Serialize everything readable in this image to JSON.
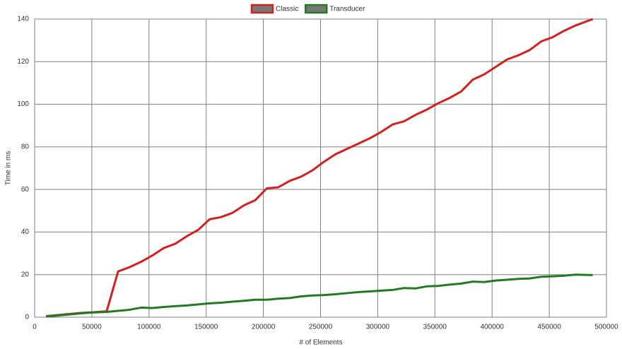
{
  "chart_data": {
    "type": "line",
    "x_label": "# of Elements",
    "y_label": "Time in ms",
    "x": [
      10000,
      20000,
      30000,
      40000,
      50000,
      63000,
      73000,
      83000,
      93000,
      103000,
      113000,
      123000,
      133000,
      143000,
      153000,
      163000,
      173000,
      183000,
      193000,
      203000,
      213000,
      223000,
      233000,
      243000,
      253000,
      263000,
      273000,
      283000,
      293000,
      303000,
      313000,
      323000,
      333000,
      343000,
      353000,
      363000,
      373000,
      383000,
      393000,
      403000,
      413000,
      423000,
      433000,
      443000,
      453000,
      463000,
      473000,
      488000
    ],
    "series": [
      {
        "name": "Classic",
        "color": "#d42020",
        "values": [
          0.5,
          1,
          1.5,
          2,
          2.3,
          2.8,
          21.5,
          23.5,
          26,
          29,
          32.5,
          34.5,
          38,
          41,
          46,
          47,
          49,
          52.5,
          55,
          60.5,
          61,
          64,
          66,
          69,
          73,
          76.5,
          79,
          81.5,
          84,
          87,
          90.5,
          92,
          95,
          97.5,
          100.5,
          103,
          106,
          111.5,
          114,
          117.5,
          121,
          123,
          125.5,
          129.5,
          131.5,
          134.5,
          137,
          140
        ]
      },
      {
        "name": "Transducer",
        "color": "#237a23",
        "values": [
          0.3,
          0.8,
          1.3,
          1.8,
          2.2,
          2.5,
          3,
          3.5,
          4.5,
          4.3,
          4.8,
          5.2,
          5.5,
          6,
          6.5,
          6.8,
          7.3,
          7.7,
          8.2,
          8.2,
          8.7,
          9,
          9.8,
          10.2,
          10.4,
          10.8,
          11.3,
          11.8,
          12.1,
          12.5,
          12.8,
          13.7,
          13.5,
          14.5,
          14.7,
          15.3,
          15.8,
          16.7,
          16.5,
          17.2,
          17.6,
          18,
          18.2,
          19,
          19.2,
          19.5,
          20,
          19.8
        ]
      }
    ],
    "xlim": [
      0,
      500000
    ],
    "xticks": [
      0,
      50000,
      100000,
      150000,
      200000,
      250000,
      300000,
      350000,
      400000,
      450000,
      500000
    ],
    "ylim": [
      0,
      140
    ],
    "yticks": [
      0,
      20,
      40,
      60,
      80,
      100,
      120,
      140
    ],
    "grid": true,
    "legend": "top"
  }
}
